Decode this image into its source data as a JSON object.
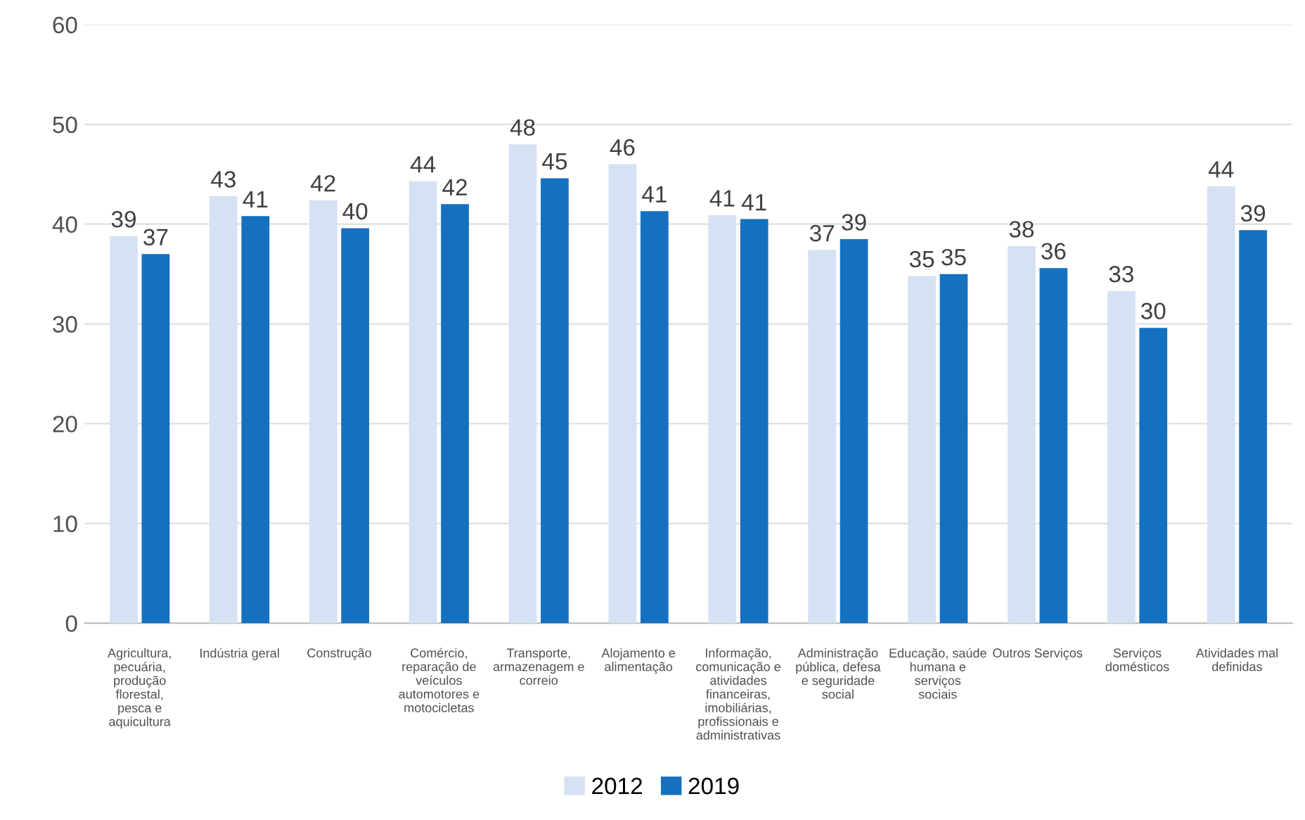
{
  "chart_data": {
    "type": "bar",
    "categories": [
      "Agricultura, pecuária, produção florestal, pesca e aquicultura",
      "Indústria geral",
      "Construção",
      "Comércio, reparação de veículos automotores e motocicletas",
      "Transporte, armazenagem e correio",
      "Alojamento e alimentação",
      "Informação, comunicação e atividades financeiras, imobiliárias, profissionais e administrativas",
      "Administração pública, defesa e seguridade social",
      "Educação, saúde humana e serviços sociais",
      "Outros Serviços",
      "Serviços domésticos",
      "Atividades mal definidas"
    ],
    "series": [
      {
        "name": "2012",
        "color": "#d5e2f3",
        "values": [
          38.8,
          42.8,
          42.4,
          44.3,
          48.0,
          46.0,
          40.9,
          37.4,
          34.8,
          37.8,
          33.3,
          43.8
        ],
        "value_labels": [
          "39",
          "43",
          "42",
          "44",
          "48",
          "46",
          "41",
          "37",
          "35",
          "38",
          "33",
          "44"
        ]
      },
      {
        "name": "2019",
        "color": "#1570c0",
        "values": [
          37.0,
          40.8,
          39.6,
          42.0,
          44.6,
          41.3,
          40.5,
          38.5,
          35.0,
          35.6,
          29.6,
          39.4
        ],
        "value_labels": [
          "37",
          "41",
          "40",
          "42",
          "45",
          "41",
          "41",
          "39",
          "35",
          "36",
          "30",
          "39"
        ]
      }
    ],
    "ylim": [
      0,
      60
    ],
    "yticks": [
      0,
      10,
      20,
      30,
      40,
      50,
      60
    ],
    "grid": "y",
    "legend": "bottom"
  }
}
